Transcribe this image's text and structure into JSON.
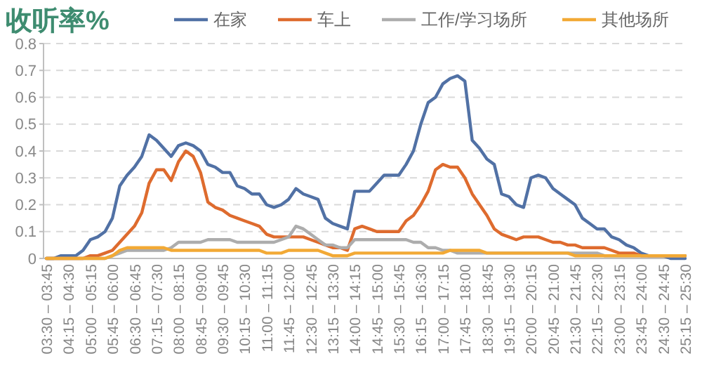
{
  "chart_data": {
    "type": "line",
    "title": "收听率%",
    "categories": [
      "03:30 – 03:45",
      null,
      null,
      "04:15 – 04:30",
      null,
      null,
      "05:00 – 05:15",
      null,
      null,
      "05:45 – 06:00",
      null,
      null,
      "06:30 – 06:45",
      null,
      null,
      "07:15 – 07:30",
      null,
      null,
      "08:00 – 08:15",
      null,
      null,
      "08:45 – 09:00",
      null,
      null,
      "09:30 – 09:45",
      null,
      null,
      "10:15 – 10:30",
      null,
      null,
      "11:00 – 11:15",
      null,
      null,
      "11:45 – 12:00",
      null,
      null,
      "12:30 – 12:45",
      null,
      null,
      "13:15 – 13:30",
      null,
      null,
      "14:00 – 14:15",
      null,
      null,
      "14:45 – 15:00",
      null,
      null,
      "15:30 – 15:45",
      null,
      null,
      "16:15 – 16:30",
      null,
      null,
      "17:00 – 17:15",
      null,
      null,
      "17:45 – 18:00",
      null,
      null,
      "18:30 – 18:45",
      null,
      null,
      "19:15 – 19:30",
      null,
      null,
      "20:00 – 20:15",
      null,
      null,
      "20:45 – 21:00",
      null,
      null,
      "21:30 – 21:45",
      null,
      null,
      "22:15 – 22:30",
      null,
      null,
      "23:00 – 23:15",
      null,
      null,
      "23:45 – 24:00",
      null,
      null,
      "24:30 – 24:45",
      null,
      null,
      "25:15 – 25:30"
    ],
    "series": [
      {
        "name": "在家",
        "color": "#5171a5",
        "values": [
          0,
          0,
          0.01,
          0.01,
          0.01,
          0.03,
          0.07,
          0.08,
          0.1,
          0.15,
          0.27,
          0.31,
          0.34,
          0.38,
          0.46,
          0.44,
          0.41,
          0.38,
          0.42,
          0.43,
          0.42,
          0.4,
          0.35,
          0.34,
          0.32,
          0.32,
          0.27,
          0.26,
          0.24,
          0.24,
          0.2,
          0.19,
          0.2,
          0.22,
          0.26,
          0.24,
          0.23,
          0.22,
          0.15,
          0.13,
          0.12,
          0.11,
          0.25,
          0.25,
          0.25,
          0.28,
          0.31,
          0.31,
          0.31,
          0.35,
          0.4,
          0.5,
          0.58,
          0.6,
          0.65,
          0.67,
          0.68,
          0.66,
          0.44,
          0.41,
          0.37,
          0.35,
          0.24,
          0.23,
          0.2,
          0.19,
          0.3,
          0.31,
          0.3,
          0.26,
          0.24,
          0.22,
          0.2,
          0.15,
          0.13,
          0.11,
          0.11,
          0.08,
          0.07,
          0.05,
          0.04,
          0.02,
          0.01,
          0.01,
          0.01,
          0,
          0,
          0
        ]
      },
      {
        "name": "车上",
        "color": "#de6b2e",
        "values": [
          0,
          0,
          0,
          0,
          0,
          0,
          0.01,
          0.01,
          0.02,
          0.03,
          0.06,
          0.09,
          0.12,
          0.17,
          0.28,
          0.33,
          0.33,
          0.29,
          0.36,
          0.4,
          0.38,
          0.32,
          0.21,
          0.19,
          0.18,
          0.16,
          0.15,
          0.14,
          0.13,
          0.12,
          0.09,
          0.08,
          0.08,
          0.08,
          0.08,
          0.08,
          0.07,
          0.06,
          0.05,
          0.04,
          0.04,
          0.03,
          0.11,
          0.12,
          0.11,
          0.1,
          0.1,
          0.1,
          0.1,
          0.14,
          0.16,
          0.2,
          0.25,
          0.33,
          0.35,
          0.34,
          0.34,
          0.3,
          0.24,
          0.2,
          0.16,
          0.11,
          0.09,
          0.08,
          0.07,
          0.08,
          0.08,
          0.08,
          0.07,
          0.06,
          0.06,
          0.05,
          0.05,
          0.04,
          0.04,
          0.04,
          0.04,
          0.03,
          0.02,
          0.02,
          0.02,
          0.01,
          0.01,
          0.01,
          0.01,
          0.01,
          0.01,
          0.01
        ]
      },
      {
        "name": "工作/学习场所",
        "color": "#adadad",
        "values": [
          0,
          0,
          0,
          0,
          0,
          0,
          0,
          0,
          0,
          0.01,
          0.02,
          0.03,
          0.03,
          0.03,
          0.03,
          0.03,
          0.03,
          0.04,
          0.06,
          0.06,
          0.06,
          0.06,
          0.07,
          0.07,
          0.07,
          0.07,
          0.06,
          0.06,
          0.06,
          0.06,
          0.06,
          0.06,
          0.07,
          0.08,
          0.12,
          0.11,
          0.09,
          0.07,
          0.05,
          0.05,
          0.04,
          0.04,
          0.07,
          0.07,
          0.07,
          0.07,
          0.07,
          0.07,
          0.07,
          0.07,
          0.06,
          0.06,
          0.04,
          0.04,
          0.03,
          0.03,
          0.02,
          0.02,
          0.02,
          0.02,
          0.02,
          0.02,
          0.02,
          0.02,
          0.02,
          0.02,
          0.02,
          0.02,
          0.02,
          0.02,
          0.02,
          0.02,
          0.02,
          0.02,
          0.02,
          0.02,
          0.01,
          0.01,
          0.01,
          0.01,
          0.01,
          0.01,
          0.01,
          0.01,
          0.01,
          0.01,
          0.01,
          0.01
        ]
      },
      {
        "name": "其他场所",
        "color": "#f2a935",
        "values": [
          0,
          0,
          0,
          0,
          0,
          0,
          0,
          0,
          0,
          0.01,
          0.03,
          0.04,
          0.04,
          0.04,
          0.04,
          0.04,
          0.04,
          0.03,
          0.03,
          0.03,
          0.03,
          0.03,
          0.03,
          0.03,
          0.03,
          0.03,
          0.03,
          0.03,
          0.03,
          0.03,
          0.02,
          0.02,
          0.02,
          0.03,
          0.03,
          0.03,
          0.03,
          0.03,
          0.02,
          0.01,
          0.01,
          0.01,
          0.02,
          0.02,
          0.02,
          0.02,
          0.02,
          0.02,
          0.02,
          0.02,
          0.02,
          0.02,
          0.02,
          0.02,
          0.02,
          0.03,
          0.03,
          0.03,
          0.03,
          0.03,
          0.02,
          0.02,
          0.02,
          0.02,
          0.02,
          0.02,
          0.02,
          0.02,
          0.02,
          0.02,
          0.02,
          0.02,
          0.01,
          0.01,
          0.01,
          0.01,
          0.01,
          0.01,
          0.01,
          0.01,
          0.01,
          0.01,
          0.01,
          0.01,
          0.01,
          0.01,
          0.01,
          0.01
        ]
      }
    ],
    "ylim": [
      0,
      0.8
    ],
    "yticks": [
      0,
      0.1,
      0.2,
      0.3,
      0.4,
      0.5,
      0.6,
      0.7,
      0.8
    ],
    "grid": "y",
    "legend": "top"
  }
}
